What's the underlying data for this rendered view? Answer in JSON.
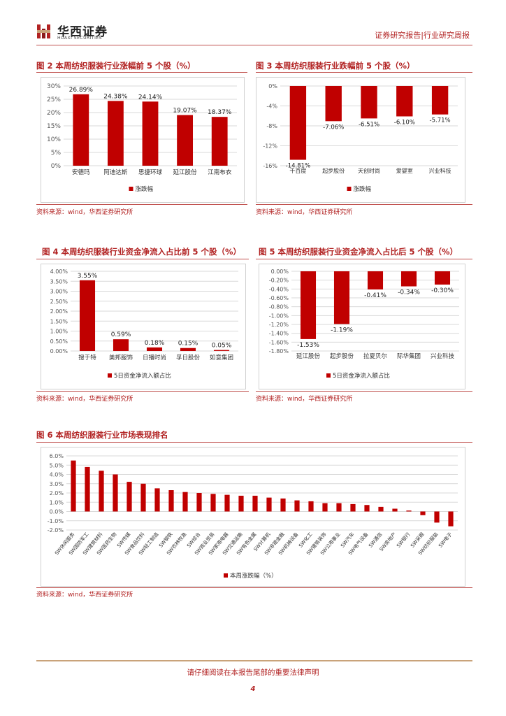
{
  "header": {
    "logo_cn": "华西证券",
    "logo_en": "HUAXI SECURITIES",
    "report_type": "证券研究报告|行业研究周报"
  },
  "figures": [
    {
      "title": "图 2 本周纺织服装行业涨幅前 5 个股（%）",
      "source": "资料来源：wind，华西证券研究所"
    },
    {
      "title": "图 3 本周纺织服装行业跌幅前 5 个股（%）",
      "source": "资料来源：wind，华西证券研究所"
    },
    {
      "title": "图 4 本周纺织服装行业资金净流入占比前 5 个股（%）",
      "source": "资料来源：wind，华西证券研究所"
    },
    {
      "title": "图 5 本周纺织服装行业资金净流入占比后 5 个股（%）",
      "source": "资料来源：wind，华西证券研究所"
    },
    {
      "title": "图 6 本周纺织服装行业市场表现排名",
      "source": "资料来源：wind，华西证券研究所"
    }
  ],
  "colors": {
    "bar": "#c00000",
    "accent": "#b22222",
    "rule": "#c0504d",
    "footer_rule": "#c9a37a"
  },
  "chart_data": [
    {
      "type": "bar",
      "title": "图 2 本周纺织服装行业涨幅前 5 个股（%）",
      "categories": [
        "安德玛",
        "阿迪达斯",
        "思捷环球",
        "延江股份",
        "江南布衣"
      ],
      "values": [
        26.89,
        24.38,
        24.14,
        19.07,
        18.37
      ],
      "labels": [
        "26.89%",
        "24.38%",
        "24.14%",
        "19.07%",
        "18.37%"
      ],
      "ylim": [
        0,
        30
      ],
      "ticks": [
        0,
        5,
        10,
        15,
        20,
        25,
        30
      ],
      "tick_labels": [
        "0%",
        "5%",
        "10%",
        "15%",
        "20%",
        "25%",
        "30%"
      ],
      "legend": "涨跌幅",
      "legend_position": "bottom"
    },
    {
      "type": "bar",
      "title": "图 3 本周纺织服装行业跌幅前 5 个股（%）",
      "categories": [
        "千百度",
        "起步股份",
        "天创时尚",
        "爱婴室",
        "兴业科技"
      ],
      "values": [
        -14.81,
        -7.06,
        -6.51,
        -6.1,
        -5.71
      ],
      "labels": [
        "-14.81%",
        "-7.06%",
        "-6.51%",
        "-6.10%",
        "-5.71%"
      ],
      "ylim": [
        -16,
        0
      ],
      "ticks": [
        0,
        -4,
        -8,
        -12,
        -16
      ],
      "tick_labels": [
        "0%",
        "-4%",
        "-8%",
        "-12%",
        "-16%"
      ],
      "legend": "涨跌幅",
      "legend_position": "bottom"
    },
    {
      "type": "bar",
      "title": "图 4 本周纺织服装行业资金净流入占比前 5 个股（%）",
      "categories": [
        "搜于特",
        "美邦服饰",
        "日播时尚",
        "孚日股份",
        "如意集团"
      ],
      "values": [
        3.55,
        0.59,
        0.18,
        0.15,
        0.05
      ],
      "labels": [
        "3.55%",
        "0.59%",
        "0.18%",
        "0.15%",
        "0.05%"
      ],
      "ylim": [
        0,
        4
      ],
      "ticks": [
        0,
        0.5,
        1,
        1.5,
        2,
        2.5,
        3,
        3.5,
        4
      ],
      "tick_labels": [
        "0.00%",
        "0.50%",
        "1.00%",
        "1.50%",
        "2.00%",
        "2.50%",
        "3.00%",
        "3.50%",
        "4.00%"
      ],
      "legend": "5日资金净流入额占比",
      "legend_position": "bottom"
    },
    {
      "type": "bar",
      "title": "图 5 本周纺织服装行业资金净流入占比后 5 个股（%）",
      "categories": [
        "延江股份",
        "起步股份",
        "拉夏贝尔",
        "际华集团",
        "兴业科技"
      ],
      "values": [
        -1.53,
        -1.19,
        -0.41,
        -0.34,
        -0.3
      ],
      "labels": [
        "-1.53%",
        "-1.19%",
        "-0.41%",
        "-0.34%",
        "-0.30%"
      ],
      "ylim": [
        -1.8,
        0
      ],
      "ticks": [
        0,
        -0.2,
        -0.4,
        -0.6,
        -0.8,
        -1.0,
        -1.2,
        -1.4,
        -1.6,
        -1.8
      ],
      "tick_labels": [
        "0.00%",
        "-0.20%",
        "-0.40%",
        "-0.60%",
        "-0.80%",
        "-1.00%",
        "-1.20%",
        "-1.40%",
        "-1.60%",
        "-1.80%"
      ],
      "legend": "5日资金净流入额占比",
      "legend_position": "bottom"
    },
    {
      "type": "bar",
      "title": "图 6 本周纺织服装行业市场表现排名",
      "categories": [
        "SW休闲服务",
        "SW国防军工",
        "SW建筑材料",
        "SW医药生物",
        "SW传媒",
        "SW食品饮料",
        "SW轻工制造",
        "SW钢铁",
        "SW农林牧渔",
        "SW综合",
        "SW商业贸易",
        "SW家用电器",
        "SW交通运输",
        "SW有色金属",
        "SW计算机",
        "SW非银金融",
        "SW机械设备",
        "SW化工",
        "SW建筑装饰",
        "SW公用事业",
        "SW汽车",
        "SW电气设备",
        "SW通信",
        "SW房地产",
        "SW银行",
        "SW采掘",
        "SW纺织服装",
        "SW电子"
      ],
      "values": [
        5.5,
        4.8,
        4.4,
        4.0,
        3.2,
        3.0,
        2.5,
        2.3,
        2.1,
        2.0,
        1.9,
        1.8,
        1.7,
        1.7,
        1.5,
        1.4,
        1.2,
        1.1,
        0.9,
        0.9,
        0.8,
        0.7,
        0.5,
        0.3,
        0.1,
        -0.4,
        -1.2,
        -1.6
      ],
      "ylim": [
        -2,
        6
      ],
      "ticks": [
        -2,
        -1,
        0,
        1,
        2,
        3,
        4,
        5,
        6
      ],
      "tick_labels": [
        "-2.0%",
        "-1.0%",
        "0.0%",
        "1.0%",
        "2.0%",
        "3.0%",
        "4.0%",
        "5.0%",
        "6.0%"
      ],
      "legend": "本周涨跌幅（%）",
      "legend_position": "bottom"
    }
  ],
  "footer": {
    "disclaimer": "请仔细阅读在本报告尾部的重要法律声明",
    "page": "4"
  }
}
